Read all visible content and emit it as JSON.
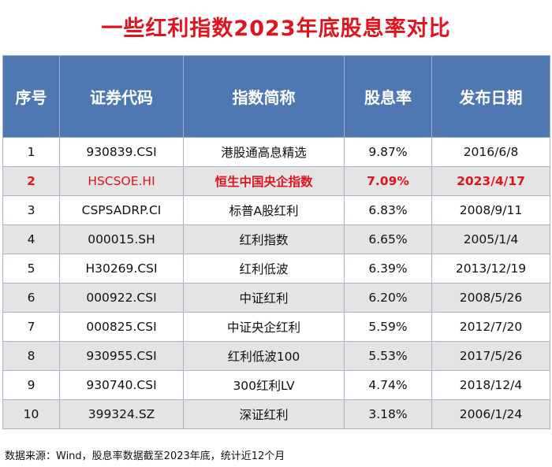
{
  "title": "一些红利指数2023年底股息率对比",
  "columns": [
    "序号",
    "证券代码",
    "指数简称",
    "股息率",
    "发布日期"
  ],
  "rows": [
    {
      "no": "1",
      "code": "930839.CSI",
      "name": "港股通高息精选",
      "yield": "9.87%",
      "date": "2016/6/8"
    },
    {
      "no": "2",
      "code": "HSCSOE.HI",
      "name": "恒生中国央企指数",
      "yield": "7.09%",
      "date": "2023/4/17"
    },
    {
      "no": "3",
      "code": "CSPSADRP.CI",
      "name": "标普A股红利",
      "yield": "6.83%",
      "date": "2008/9/11"
    },
    {
      "no": "4",
      "code": "000015.SH",
      "name": "红利指数",
      "yield": "6.65%",
      "date": "2005/1/4"
    },
    {
      "no": "5",
      "code": "H30269.CSI",
      "name": "红利低波",
      "yield": "6.39%",
      "date": "2013/12/19"
    },
    {
      "no": "6",
      "code": "000922.CSI",
      "name": "中证红利",
      "yield": "6.20%",
      "date": "2008/5/26"
    },
    {
      "no": "7",
      "code": "000825.CSI",
      "name": "中证央企红利",
      "yield": "5.59%",
      "date": "2012/7/20"
    },
    {
      "no": "8",
      "code": "930955.CSI",
      "name": "红利低波100",
      "yield": "5.53%",
      "date": "2017/5/26"
    },
    {
      "no": "9",
      "code": "930740.CSI",
      "name": "300红利LV",
      "yield": "4.74%",
      "date": "2018/12/4"
    },
    {
      "no": "10",
      "code": "399324.SZ",
      "name": "深证红利",
      "yield": "3.18%",
      "date": "2006/1/24"
    }
  ],
  "footnote": "数据来源：Wind，股息率数据截至2023年底，统计近12个月",
  "colors": {
    "title": "#e0141e",
    "header_bg": "#4f78b3",
    "highlight": "#e0141e",
    "stripe": "#e4e4e4"
  }
}
